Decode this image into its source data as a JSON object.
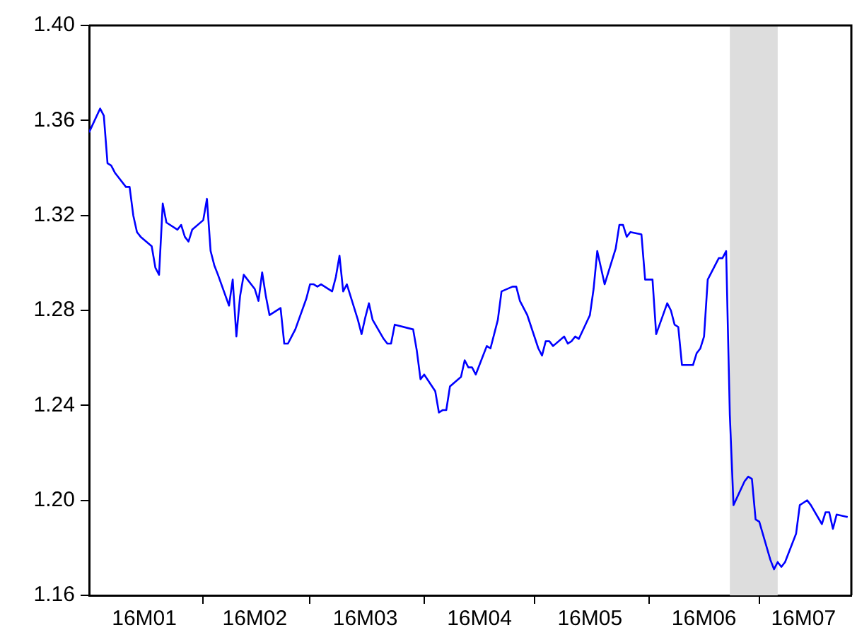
{
  "chart_data": {
    "type": "line",
    "x": [
      "--01-01",
      "--01-04",
      "--01-05",
      "--01-06",
      "--01-07",
      "--01-08",
      "--01-11",
      "--01-12",
      "--01-13",
      "--01-14",
      "--01-15",
      "--01-18",
      "--01-19",
      "--01-20",
      "--01-21",
      "--01-22",
      "--01-25",
      "--01-26",
      "--01-27",
      "--01-28",
      "--01-29",
      "--02-01",
      "--02-02",
      "--02-03",
      "--02-04",
      "--02-05",
      "--02-08",
      "--02-09",
      "--02-10",
      "--02-11",
      "--02-12",
      "--02-15",
      "--02-16",
      "--02-17",
      "--02-18",
      "--02-19",
      "--02-22",
      "--02-23",
      "--02-24",
      "--02-25",
      "--02-26",
      "--02-29",
      "--03-01",
      "--03-02",
      "--03-03",
      "--03-04",
      "--03-07",
      "--03-08",
      "--03-09",
      "--03-10",
      "--03-11",
      "--03-14",
      "--03-15",
      "--03-16",
      "--03-17",
      "--03-18",
      "--03-21",
      "--03-22",
      "--03-23",
      "--03-24",
      "--03-29",
      "--03-30",
      "--03-31",
      "--04-01",
      "--04-04",
      "--04-05",
      "--04-06",
      "--04-07",
      "--04-08",
      "--04-11",
      "--04-12",
      "--04-13",
      "--04-14",
      "--04-15",
      "--04-18",
      "--04-19",
      "--04-20",
      "--04-21",
      "--04-22",
      "--04-25",
      "--04-26",
      "--04-27",
      "--04-28",
      "--04-29",
      "--05-02",
      "--05-03",
      "--05-04",
      "--05-05",
      "--05-06",
      "--05-09",
      "--05-10",
      "--05-11",
      "--05-12",
      "--05-13",
      "--05-16",
      "--05-17",
      "--05-18",
      "--05-19",
      "--05-20",
      "--05-23",
      "--05-24",
      "--05-25",
      "--05-26",
      "--05-27",
      "--05-30",
      "--05-31",
      "--06-01",
      "--06-02",
      "--06-03",
      "--06-06",
      "--06-07",
      "--06-08",
      "--06-09",
      "--06-10",
      "--06-13",
      "--06-14",
      "--06-15",
      "--06-16",
      "--06-17",
      "--06-20",
      "--06-21",
      "--06-22",
      "--06-23",
      "--06-24",
      "--06-27",
      "--06-28",
      "--06-29",
      "--06-30",
      "--07-01",
      "--07-04",
      "--07-05",
      "--07-06",
      "--07-07",
      "--07-08",
      "--07-11",
      "--07-12",
      "--07-13",
      "--07-14",
      "--07-15",
      "--07-18",
      "--07-19",
      "--07-20",
      "--07-21",
      "--07-22",
      "--07-25"
    ],
    "values": [
      1.355,
      1.365,
      1.362,
      1.342,
      1.341,
      1.338,
      1.332,
      1.332,
      1.32,
      1.313,
      1.311,
      1.307,
      1.298,
      1.295,
      1.325,
      1.317,
      1.314,
      1.316,
      1.311,
      1.309,
      1.314,
      1.318,
      1.327,
      1.305,
      1.299,
      1.295,
      1.282,
      1.293,
      1.269,
      1.286,
      1.295,
      1.289,
      1.284,
      1.296,
      1.286,
      1.278,
      1.281,
      1.266,
      1.266,
      1.269,
      1.272,
      1.285,
      1.291,
      1.291,
      1.29,
      1.291,
      1.288,
      1.294,
      1.303,
      1.288,
      1.291,
      1.276,
      1.27,
      1.277,
      1.283,
      1.276,
      1.268,
      1.266,
      1.266,
      1.274,
      1.272,
      1.263,
      1.251,
      1.253,
      1.246,
      1.237,
      1.238,
      1.238,
      1.248,
      1.252,
      1.259,
      1.256,
      1.256,
      1.253,
      1.265,
      1.264,
      1.27,
      1.276,
      1.288,
      1.29,
      1.29,
      1.284,
      1.281,
      1.278,
      1.264,
      1.261,
      1.267,
      1.267,
      1.265,
      1.269,
      1.266,
      1.267,
      1.269,
      1.268,
      1.278,
      1.289,
      1.305,
      1.298,
      1.291,
      1.306,
      1.316,
      1.316,
      1.311,
      1.313,
      1.312,
      1.293,
      1.293,
      1.293,
      1.27,
      1.283,
      1.28,
      1.274,
      1.273,
      1.257,
      1.257,
      1.262,
      1.264,
      1.269,
      1.293,
      1.302,
      1.302,
      1.305,
      1.236,
      1.198,
      1.208,
      1.21,
      1.209,
      1.192,
      1.191,
      1.175,
      1.171,
      1.174,
      1.172,
      1.174,
      1.186,
      1.198,
      1.199,
      1.2,
      1.198,
      1.19,
      1.195,
      1.195,
      1.188,
      1.194,
      1.193
    ],
    "color": "#0000ff",
    "xlim": [
      "--01-01",
      "--07-26"
    ],
    "xticks": [
      {
        "value": "--01-16",
        "label": "16M01"
      },
      {
        "value": "--02-01",
        "label": null
      },
      {
        "value": "--02-15",
        "label": "16M02"
      },
      {
        "value": "--03-01",
        "label": null
      },
      {
        "value": "--03-16",
        "label": "16M03"
      },
      {
        "value": "--04-01",
        "label": null
      },
      {
        "value": "--04-16",
        "label": "16M04"
      },
      {
        "value": "--05-01",
        "label": null
      },
      {
        "value": "--05-16",
        "label": "16M05"
      },
      {
        "value": "--06-01",
        "label": null
      },
      {
        "value": "--06-16",
        "label": "16M06"
      },
      {
        "value": "--07-01",
        "label": null
      },
      {
        "value": "--07-13",
        "label": "16M07"
      }
    ],
    "ylim": [
      1.16,
      1.4
    ],
    "yticks": [
      1.16,
      {
        "value": 1.2,
        "label": "1.20"
      },
      1.24,
      1.28,
      1.32,
      1.36,
      {
        "value": 1.4,
        "label": "1.40"
      }
    ],
    "bands": [
      {
        "axis": "x",
        "from": "--06-23",
        "to": "--07-06",
        "color": "#dddddd"
      }
    ],
    "grid": false,
    "legend": false,
    "marker": "none",
    "line_style": "solid"
  }
}
